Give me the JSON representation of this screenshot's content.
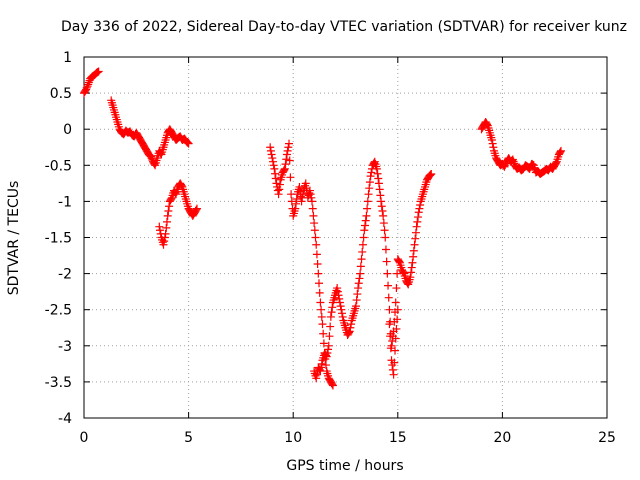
{
  "chart_data": {
    "type": "scatter",
    "title": "Day 336 of 2022, Sidereal Day-to-day VTEC variation (SDTVAR) for receiver kunz",
    "xlabel": "GPS time / hours",
    "ylabel": "SDTVAR / TECUs",
    "xlim": [
      0,
      25
    ],
    "ylim": [
      -4,
      1
    ],
    "xticks": [
      0,
      5,
      10,
      15,
      20,
      25
    ],
    "yticks": [
      1,
      0.5,
      0,
      -0.5,
      -1,
      -1.5,
      -2,
      -2.5,
      -3,
      -3.5,
      -4
    ],
    "grid": true,
    "marker": "+",
    "marker_color": "#ff0000",
    "series": [
      {
        "name": "SDTVAR",
        "segments": [
          [
            [
              0.0,
              0.5
            ],
            [
              0.1,
              0.55
            ],
            [
              0.2,
              0.62
            ],
            [
              0.3,
              0.7
            ],
            [
              0.4,
              0.73
            ],
            [
              0.5,
              0.75
            ],
            [
              0.6,
              0.78
            ],
            [
              0.7,
              0.8
            ]
          ],
          [
            [
              1.3,
              0.4
            ],
            [
              1.4,
              0.3
            ],
            [
              1.5,
              0.2
            ],
            [
              1.6,
              0.1
            ],
            [
              1.7,
              0.0
            ],
            [
              1.8,
              -0.05
            ],
            [
              1.9,
              -0.07
            ],
            [
              2.0,
              -0.02
            ],
            [
              2.1,
              -0.05
            ],
            [
              2.2,
              -0.03
            ],
            [
              2.3,
              -0.08
            ],
            [
              2.4,
              -0.1
            ],
            [
              2.5,
              -0.05
            ],
            [
              2.6,
              -0.1
            ],
            [
              2.7,
              -0.15
            ],
            [
              2.8,
              -0.2
            ],
            [
              2.9,
              -0.25
            ],
            [
              3.0,
              -0.3
            ],
            [
              3.1,
              -0.35
            ],
            [
              3.2,
              -0.38
            ],
            [
              3.3,
              -0.45
            ],
            [
              3.4,
              -0.5
            ],
            [
              3.5,
              -0.4
            ],
            [
              3.6,
              -0.3
            ],
            [
              3.7,
              -0.35
            ],
            [
              3.8,
              -0.25
            ],
            [
              3.9,
              -0.15
            ],
            [
              4.0,
              -0.05
            ],
            [
              4.1,
              0.0
            ],
            [
              4.2,
              -0.05
            ],
            [
              4.3,
              -0.1
            ],
            [
              4.4,
              -0.15
            ],
            [
              4.5,
              -0.12
            ],
            [
              4.6,
              -0.1
            ],
            [
              4.7,
              -0.15
            ],
            [
              4.8,
              -0.13
            ],
            [
              4.9,
              -0.17
            ],
            [
              5.0,
              -0.2
            ]
          ],
          [
            [
              3.6,
              -1.35
            ],
            [
              3.7,
              -1.5
            ],
            [
              3.8,
              -1.6
            ],
            [
              3.9,
              -1.45
            ],
            [
              4.0,
              -1.2
            ],
            [
              4.1,
              -1.0
            ],
            [
              4.2,
              -0.95
            ],
            [
              4.3,
              -0.85
            ],
            [
              4.4,
              -0.9
            ],
            [
              4.5,
              -0.8
            ],
            [
              4.6,
              -0.75
            ],
            [
              4.7,
              -0.8
            ],
            [
              4.8,
              -0.9
            ],
            [
              4.9,
              -1.0
            ],
            [
              5.0,
              -1.1
            ],
            [
              5.1,
              -1.15
            ],
            [
              5.2,
              -1.2
            ],
            [
              5.3,
              -1.15
            ],
            [
              5.4,
              -1.1
            ]
          ],
          [
            [
              8.9,
              -0.25
            ],
            [
              9.0,
              -0.4
            ],
            [
              9.1,
              -0.55
            ],
            [
              9.2,
              -0.75
            ],
            [
              9.3,
              -0.9
            ],
            [
              9.4,
              -0.7
            ],
            [
              9.5,
              -0.6
            ],
            [
              9.6,
              -0.55
            ],
            [
              9.7,
              -0.35
            ],
            [
              9.8,
              -0.2
            ],
            [
              9.9,
              -0.9
            ],
            [
              10.0,
              -1.2
            ],
            [
              10.1,
              -1.1
            ],
            [
              10.2,
              -0.9
            ],
            [
              10.3,
              -0.8
            ],
            [
              10.4,
              -1.0
            ],
            [
              10.5,
              -0.85
            ],
            [
              10.6,
              -0.75
            ],
            [
              10.7,
              -0.95
            ],
            [
              10.8,
              -0.85
            ],
            [
              10.9,
              -1.0
            ],
            [
              11.0,
              -1.3
            ],
            [
              11.1,
              -1.6
            ],
            [
              11.2,
              -2.0
            ],
            [
              11.3,
              -2.4
            ],
            [
              11.4,
              -2.7
            ],
            [
              11.5,
              -3.1
            ],
            [
              11.6,
              -3.15
            ],
            [
              11.7,
              -3.0
            ],
            [
              11.8,
              -2.6
            ],
            [
              11.9,
              -2.4
            ],
            [
              12.0,
              -2.3
            ],
            [
              12.1,
              -2.2
            ],
            [
              12.2,
              -2.35
            ],
            [
              12.3,
              -2.5
            ],
            [
              12.4,
              -2.65
            ],
            [
              12.5,
              -2.75
            ],
            [
              12.6,
              -2.85
            ],
            [
              12.7,
              -2.8
            ],
            [
              12.8,
              -2.65
            ],
            [
              12.9,
              -2.55
            ],
            [
              13.0,
              -2.45
            ],
            [
              13.1,
              -2.2
            ],
            [
              13.2,
              -2.0
            ],
            [
              13.3,
              -1.7
            ],
            [
              13.4,
              -1.4
            ],
            [
              13.5,
              -1.2
            ],
            [
              13.6,
              -0.9
            ],
            [
              13.7,
              -0.65
            ],
            [
              13.8,
              -0.5
            ],
            [
              13.9,
              -0.45
            ],
            [
              14.0,
              -0.55
            ],
            [
              14.1,
              -0.75
            ],
            [
              14.2,
              -1.0
            ],
            [
              14.3,
              -1.2
            ],
            [
              14.4,
              -1.5
            ],
            [
              14.5,
              -2.0
            ],
            [
              14.6,
              -2.5
            ],
            [
              14.7,
              -3.0
            ],
            [
              14.8,
              -2.8
            ],
            [
              14.9,
              -2.4
            ],
            [
              15.0,
              -1.8
            ],
            [
              15.1,
              -1.85
            ],
            [
              15.2,
              -1.95
            ],
            [
              15.3,
              -2.0
            ],
            [
              15.4,
              -2.1
            ],
            [
              15.5,
              -2.15
            ],
            [
              15.6,
              -2.05
            ],
            [
              15.7,
              -1.85
            ],
            [
              15.8,
              -1.6
            ],
            [
              15.9,
              -1.35
            ],
            [
              16.0,
              -1.15
            ],
            [
              16.1,
              -1.0
            ],
            [
              16.2,
              -0.9
            ],
            [
              16.3,
              -0.8
            ],
            [
              16.4,
              -0.7
            ],
            [
              16.5,
              -0.65
            ],
            [
              16.6,
              -0.62
            ]
          ],
          [
            [
              11.0,
              -3.35
            ],
            [
              11.1,
              -3.45
            ],
            [
              11.2,
              -3.3
            ],
            [
              11.3,
              -3.35
            ],
            [
              11.4,
              -3.2
            ],
            [
              11.5,
              -3.1
            ],
            [
              11.6,
              -3.35
            ],
            [
              11.7,
              -3.45
            ],
            [
              11.8,
              -3.5
            ],
            [
              11.9,
              -3.55
            ]
          ],
          [
            [
              14.6,
              -2.7
            ],
            [
              14.7,
              -3.2
            ],
            [
              14.8,
              -3.4
            ],
            [
              14.9,
              -2.9
            ],
            [
              15.0,
              -2.5
            ]
          ],
          [
            [
              19.0,
              0.0
            ],
            [
              19.1,
              0.05
            ],
            [
              19.2,
              0.1
            ],
            [
              19.3,
              0.05
            ],
            [
              19.4,
              -0.05
            ],
            [
              19.5,
              -0.15
            ],
            [
              19.6,
              -0.3
            ],
            [
              19.7,
              -0.4
            ],
            [
              19.8,
              -0.45
            ],
            [
              19.9,
              -0.5
            ],
            [
              20.0,
              -0.48
            ],
            [
              20.1,
              -0.52
            ],
            [
              20.2,
              -0.45
            ],
            [
              20.3,
              -0.4
            ],
            [
              20.4,
              -0.45
            ],
            [
              20.5,
              -0.42
            ],
            [
              20.6,
              -0.5
            ],
            [
              20.7,
              -0.55
            ],
            [
              20.8,
              -0.53
            ],
            [
              20.9,
              -0.57
            ],
            [
              21.0,
              -0.55
            ],
            [
              21.1,
              -0.5
            ],
            [
              21.2,
              -0.52
            ],
            [
              21.3,
              -0.55
            ],
            [
              21.4,
              -0.48
            ],
            [
              21.5,
              -0.5
            ],
            [
              21.6,
              -0.6
            ],
            [
              21.7,
              -0.58
            ],
            [
              21.8,
              -0.62
            ],
            [
              21.9,
              -0.6
            ],
            [
              22.0,
              -0.58
            ],
            [
              22.1,
              -0.55
            ],
            [
              22.2,
              -0.57
            ],
            [
              22.3,
              -0.52
            ],
            [
              22.4,
              -0.55
            ],
            [
              22.5,
              -0.5
            ],
            [
              22.6,
              -0.45
            ],
            [
              22.7,
              -0.35
            ],
            [
              22.8,
              -0.3
            ]
          ]
        ]
      }
    ]
  }
}
